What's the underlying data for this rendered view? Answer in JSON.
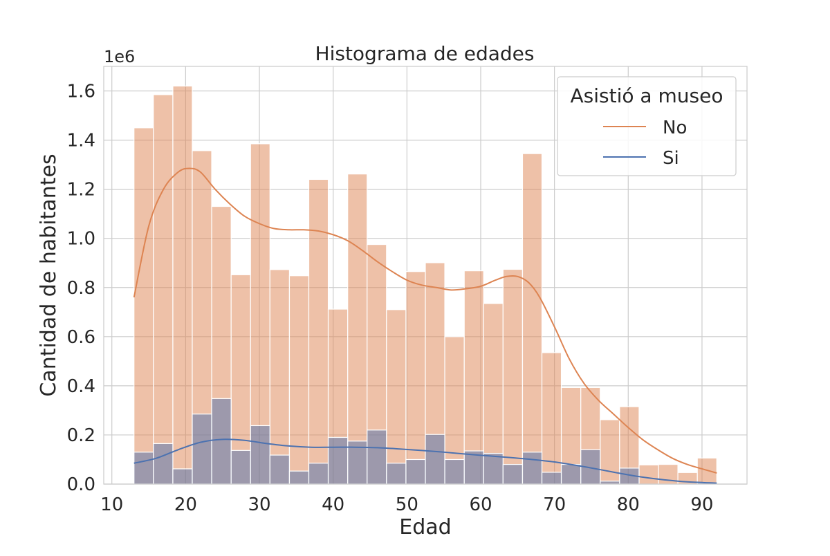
{
  "chart_data": {
    "type": "bar",
    "title": "Histograma de edades",
    "xlabel": "Edad",
    "ylabel": "Cantidad de habitantes",
    "offset_text": "1e6",
    "xlim": [
      8.9,
      96.1
    ],
    "ylim": [
      0,
      1.7
    ],
    "xticks": [
      10,
      20,
      30,
      40,
      50,
      60,
      70,
      80,
      90
    ],
    "xtick_labels": [
      "10",
      "20",
      "30",
      "40",
      "50",
      "60",
      "70",
      "80",
      "90"
    ],
    "yticks": [
      0.0,
      0.2,
      0.4,
      0.6,
      0.8,
      1.0,
      1.2,
      1.4,
      1.6
    ],
    "ytick_labels": [
      "0.0",
      "0.2",
      "0.4",
      "0.6",
      "0.8",
      "1.0",
      "1.2",
      "1.4",
      "1.6"
    ],
    "grid": true,
    "legend": {
      "title": "Asistió a museo",
      "placement": "top-right",
      "entries": [
        {
          "label": "No",
          "color": "#dd8452"
        },
        {
          "label": "Si",
          "color": "#4c72b0"
        }
      ]
    },
    "bin_edges": [
      13,
      15.63,
      18.27,
      20.9,
      23.53,
      26.17,
      28.8,
      31.43,
      34.07,
      36.7,
      39.33,
      41.97,
      44.6,
      47.23,
      49.87,
      52.5,
      55.13,
      57.77,
      60.4,
      63.03,
      65.67,
      68.3,
      70.93,
      73.57,
      76.2,
      78.83,
      81.47,
      84.1,
      86.73,
      89.37,
      92
    ],
    "series": [
      {
        "name": "No",
        "color": "#dd8452",
        "values": [
          1.45,
          1.585,
          1.62,
          1.357,
          1.13,
          0.852,
          1.385,
          0.873,
          0.848,
          1.24,
          0.712,
          1.262,
          0.975,
          0.71,
          0.865,
          0.901,
          0.6,
          0.868,
          0.735,
          0.874,
          1.345,
          0.535,
          0.393,
          0.393,
          0.262,
          0.315,
          0.078,
          0.08,
          0.047,
          0.106
        ],
        "kde": {
          "x": [
            13,
            15,
            17,
            19,
            20.5,
            22,
            24,
            26,
            28,
            30,
            32,
            34,
            36,
            38,
            40,
            42,
            44,
            46,
            48,
            50,
            52,
            54,
            56,
            58,
            60,
            62,
            63.5,
            65,
            66.5,
            68,
            70,
            72,
            74,
            76,
            78,
            80,
            82,
            84,
            86,
            88,
            90,
            92
          ],
          "y": [
            0.76,
            1.05,
            1.2,
            1.27,
            1.285,
            1.27,
            1.2,
            1.14,
            1.09,
            1.06,
            1.04,
            1.035,
            1.035,
            1.03,
            1.015,
            0.99,
            0.95,
            0.905,
            0.865,
            0.83,
            0.81,
            0.8,
            0.79,
            0.795,
            0.805,
            0.83,
            0.845,
            0.845,
            0.82,
            0.76,
            0.64,
            0.51,
            0.41,
            0.34,
            0.285,
            0.23,
            0.18,
            0.14,
            0.105,
            0.08,
            0.062,
            0.045
          ]
        }
      },
      {
        "name": "Si",
        "color": "#4c72b0",
        "values": [
          0.13,
          0.165,
          0.062,
          0.285,
          0.348,
          0.137,
          0.238,
          0.118,
          0.053,
          0.085,
          0.19,
          0.175,
          0.22,
          0.085,
          0.1,
          0.202,
          0.1,
          0.135,
          0.125,
          0.08,
          0.13,
          0.048,
          0.08,
          0.14,
          0.012,
          0.065,
          0.0,
          0.0,
          0.0,
          0.005
        ],
        "kde": {
          "x": [
            13,
            16,
            19,
            22,
            25,
            28,
            31,
            34,
            37,
            40,
            43,
            46,
            49,
            52,
            55,
            58,
            61,
            64,
            67,
            70,
            73,
            76,
            79,
            82,
            85,
            88,
            92
          ],
          "y": [
            0.085,
            0.105,
            0.14,
            0.17,
            0.182,
            0.178,
            0.165,
            0.155,
            0.15,
            0.15,
            0.15,
            0.148,
            0.143,
            0.137,
            0.13,
            0.122,
            0.115,
            0.108,
            0.1,
            0.09,
            0.076,
            0.06,
            0.043,
            0.028,
            0.017,
            0.009,
            0.004
          ]
        }
      }
    ]
  }
}
